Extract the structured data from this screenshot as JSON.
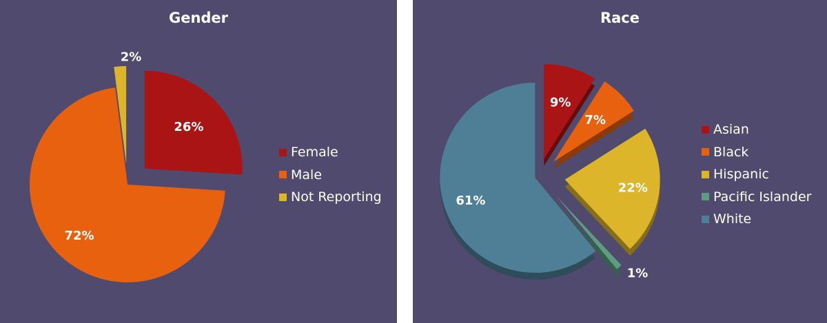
{
  "chart_data": [
    {
      "type": "pie",
      "title": "Gender",
      "categories": [
        "Female",
        "Male",
        "Not Reporting"
      ],
      "values": [
        26,
        72,
        2
      ],
      "labels": [
        "26%",
        "72%",
        "2%"
      ],
      "colors": [
        "#ab1414",
        "#e8610f",
        "#ddb52b"
      ],
      "legend": "right"
    },
    {
      "type": "pie",
      "title": "Race",
      "categories": [
        "Asian",
        "Black",
        "Hispanic",
        "Pacific Islander",
        "White"
      ],
      "values": [
        9,
        7,
        22,
        1,
        61
      ],
      "labels": [
        "9%",
        "7%",
        "22%",
        "1%",
        "61%"
      ],
      "colors": [
        "#ab1414",
        "#e8610f",
        "#ddb52b",
        "#5e9c82",
        "#4f7f96"
      ],
      "legend": "right"
    }
  ]
}
